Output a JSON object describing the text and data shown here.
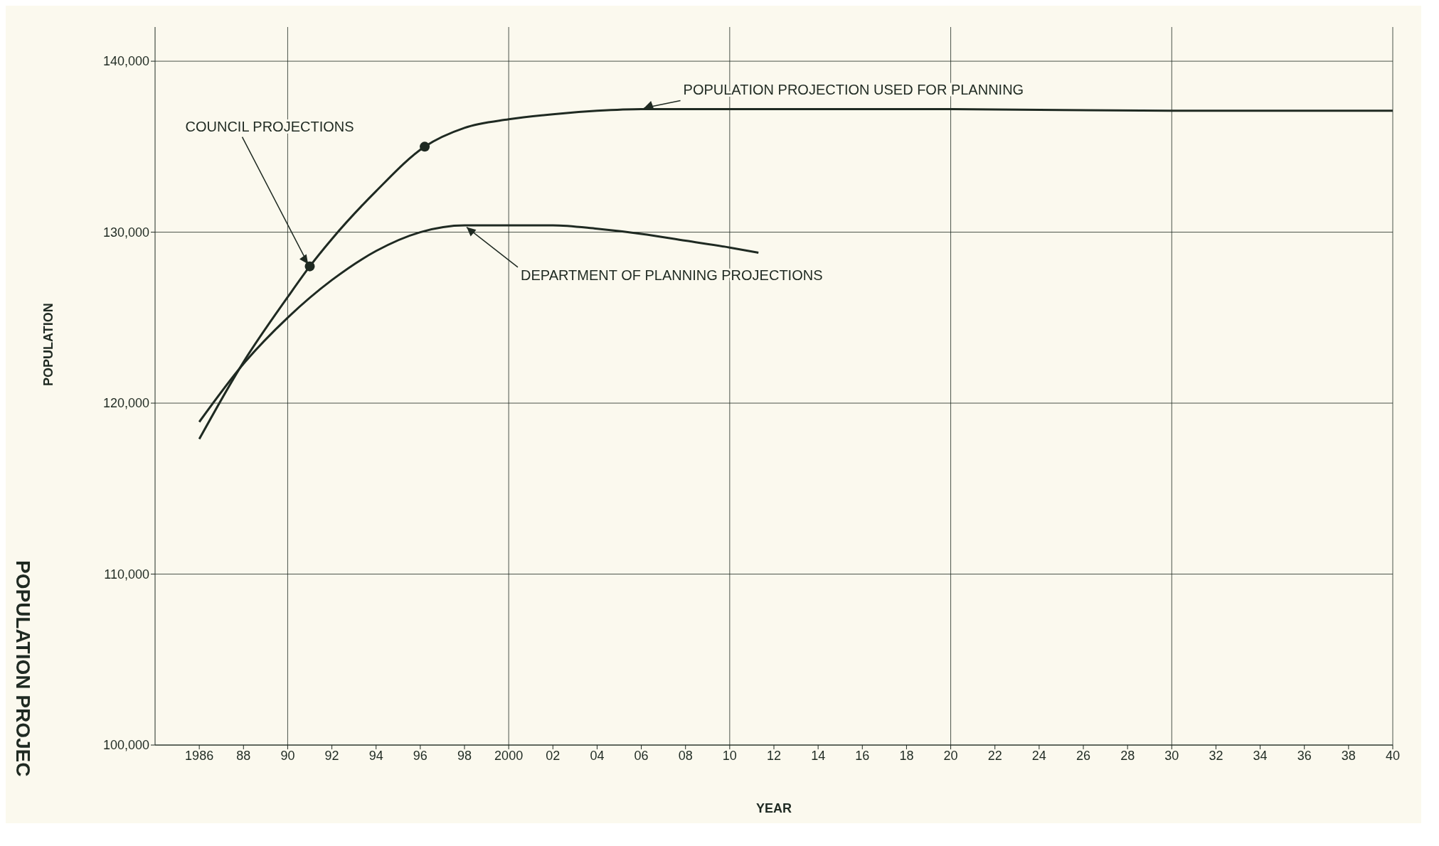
{
  "chart_data": {
    "type": "line",
    "title": "POPULATION PROJEC",
    "xlabel": "YEAR",
    "ylabel": "POPULATION",
    "xlim": [
      1984,
      2040
    ],
    "xticks": [
      {
        "value": 1986,
        "label": "1986"
      },
      {
        "value": 1988,
        "label": "88"
      },
      {
        "value": 1990,
        "label": "90"
      },
      {
        "value": 1992,
        "label": "92"
      },
      {
        "value": 1994,
        "label": "94"
      },
      {
        "value": 1996,
        "label": "96"
      },
      {
        "value": 1998,
        "label": "98"
      },
      {
        "value": 2000,
        "label": "2000"
      },
      {
        "value": 2002,
        "label": "02"
      },
      {
        "value": 2004,
        "label": "04"
      },
      {
        "value": 2006,
        "label": "06"
      },
      {
        "value": 2008,
        "label": "08"
      },
      {
        "value": 2010,
        "label": "10"
      },
      {
        "value": 2012,
        "label": "12"
      },
      {
        "value": 2014,
        "label": "14"
      },
      {
        "value": 2016,
        "label": "16"
      },
      {
        "value": 2018,
        "label": "18"
      },
      {
        "value": 2020,
        "label": "20"
      },
      {
        "value": 2022,
        "label": "22"
      },
      {
        "value": 2024,
        "label": "24"
      },
      {
        "value": 2026,
        "label": "26"
      },
      {
        "value": 2028,
        "label": "28"
      },
      {
        "value": 2030,
        "label": "30"
      },
      {
        "value": 2032,
        "label": "32"
      },
      {
        "value": 2034,
        "label": "34"
      },
      {
        "value": 2036,
        "label": "36"
      },
      {
        "value": 2038,
        "label": "38"
      },
      {
        "value": 2040,
        "label": "40"
      }
    ],
    "ylim": [
      100000,
      142000
    ],
    "yticks": [
      {
        "value": 100000,
        "label": "100,000"
      },
      {
        "value": 110000,
        "label": "110,000"
      },
      {
        "value": 120000,
        "label": "120,000"
      },
      {
        "value": 130000,
        "label": "130,000"
      },
      {
        "value": 140000,
        "label": "140,000"
      }
    ],
    "grid": true,
    "legend": false,
    "marker": "none",
    "line_style": "solid",
    "series": [
      {
        "type": "line",
        "color": "#1f2a22",
        "x": [
          1986,
          1988,
          1990,
          1991,
          1992,
          1994,
          1996.2,
          1998,
          2000,
          2002,
          2004,
          2006,
          2010,
          2020,
          2030,
          2040
        ],
        "values": [
          117900,
          122400,
          126200,
          128000,
          129600,
          132400,
          135000,
          136100,
          136600,
          136900,
          137100,
          137200,
          137200,
          137200,
          137100,
          137100
        ]
      },
      {
        "type": "line",
        "color": "#1f2a22",
        "x": [
          1986,
          1988,
          1990,
          1992,
          1994,
          1996,
          1998,
          2000,
          2002,
          2004,
          2006,
          2008,
          2010,
          2011.3
        ],
        "values": [
          118900,
          122300,
          125000,
          127200,
          128900,
          130000,
          130400,
          130400,
          130400,
          130200,
          129900,
          129500,
          129100,
          128800
        ]
      },
      {
        "type": "scatter",
        "color": "#1f2a22",
        "marker": "circle",
        "x": [
          1991,
          1996.2
        ],
        "values": [
          128000,
          135000
        ]
      }
    ],
    "annotations": [
      {
        "text": "COUNCIL PROJECTIONS",
        "x": 1991,
        "y": 128000
      },
      {
        "text": "POPULATION PROJECTION USED FOR PLANNING",
        "x": 2006,
        "y": 137200
      },
      {
        "text": "DEPARTMENT OF PLANNING PROJECTIONS",
        "x": 1998,
        "y": 130400
      }
    ]
  }
}
